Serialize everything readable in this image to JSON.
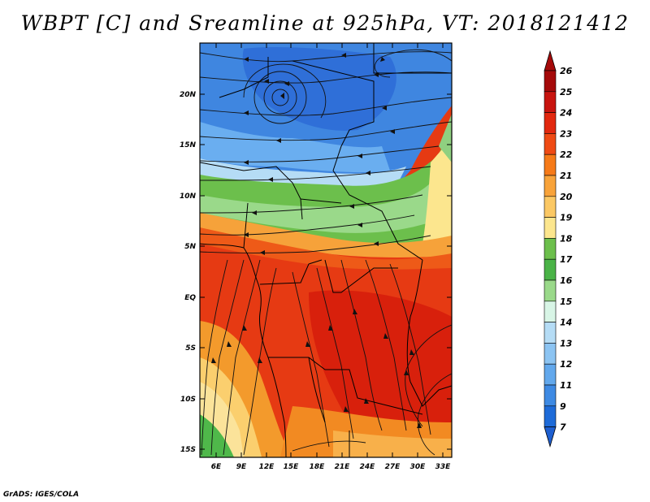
{
  "title": "WBPT [C] and Sreamline at 925hPa, VT: 2018121412",
  "credit": "GrADS: IGES/COLA",
  "map": {
    "lat_labels": [
      "20N",
      "15N",
      "10N",
      "5N",
      "EQ",
      "5S",
      "10S",
      "15S"
    ],
    "lon_labels": [
      "6E",
      "9E",
      "12E",
      "15E",
      "18E",
      "21E",
      "24E",
      "27E",
      "30E",
      "33E"
    ],
    "lon_range": [
      3.5,
      33.5
    ],
    "lat_range": [
      -16,
      25
    ],
    "field": "Wet-bulb potential temperature with 925hPa streamlines"
  },
  "colorbar": {
    "labels": [
      "26",
      "25",
      "24",
      "23",
      "22",
      "21",
      "20",
      "19",
      "18",
      "17",
      "16",
      "15",
      "14",
      "13",
      "12",
      "11",
      "9",
      "7"
    ],
    "colors": [
      "#a50a0a",
      "#c8140f",
      "#e2280f",
      "#ef4a14",
      "#f67a18",
      "#f8a33a",
      "#fbc864",
      "#fce68e",
      "#6cbf4c",
      "#4ab347",
      "#9ad98a",
      "#d8f5e6",
      "#b5dcf5",
      "#8cc4f2",
      "#62a8ec",
      "#3e8ae3",
      "#1e6bd8"
    ],
    "top_arrow": "#a50a0a",
    "bottom_arrow": "#1e5fd0"
  }
}
